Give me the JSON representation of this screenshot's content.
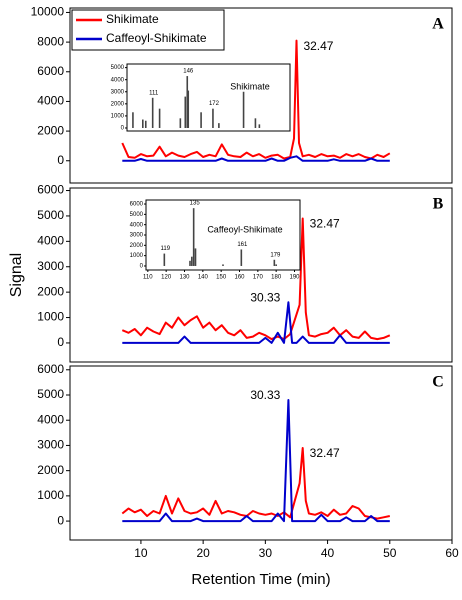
{
  "chart_data": [
    {
      "type": "line",
      "panel_label": "A",
      "legend": "upper left",
      "xlim": [
        -1.4,
        60
      ],
      "ylim": [
        -1500,
        10300
      ],
      "yticks": [
        0,
        2000,
        4000,
        6000,
        8000,
        10000
      ],
      "series": [
        {
          "name": "Shikimate",
          "color": "#ff0000",
          "peak_label": 32.47,
          "x": [
            7,
            8,
            9,
            10,
            11,
            12,
            13,
            14,
            15,
            16,
            17,
            18,
            19,
            20,
            21,
            22,
            23,
            24,
            25,
            26,
            27,
            28,
            29,
            30,
            31,
            32,
            33,
            34,
            34.6,
            35,
            35.4,
            36,
            37,
            38,
            39,
            40,
            41,
            42,
            43,
            44,
            45,
            46,
            47,
            48,
            49,
            50
          ],
          "values": [
            1200,
            250,
            200,
            450,
            300,
            350,
            950,
            300,
            550,
            350,
            250,
            450,
            600,
            250,
            400,
            300,
            1100,
            400,
            300,
            250,
            550,
            300,
            450,
            200,
            350,
            400,
            150,
            250,
            1500,
            8100,
            1200,
            300,
            400,
            250,
            450,
            300,
            350,
            200,
            450,
            300,
            450,
            250,
            150,
            400,
            250,
            500
          ]
        },
        {
          "name": "Caffeoyl-Shikimate",
          "color": "#0000cc",
          "x": [
            7,
            9,
            10,
            11,
            14,
            22,
            23,
            24,
            30,
            31,
            32,
            33,
            34,
            35,
            36,
            37,
            40,
            41,
            42,
            46,
            47,
            48,
            50
          ],
          "values": [
            0,
            0,
            120,
            0,
            0,
            0,
            150,
            0,
            0,
            150,
            0,
            0,
            200,
            300,
            0,
            0,
            0,
            100,
            0,
            0,
            150,
            0,
            0
          ]
        }
      ],
      "inset": {
        "type": "bar",
        "title": "Shikimate",
        "xlim": [
          85,
          250
        ],
        "ylim": [
          -250,
          5300
        ],
        "yticks": [
          0,
          1000,
          2000,
          3000,
          4000,
          5000
        ],
        "x": [
          91,
          101,
          104,
          111,
          118,
          139,
          144,
          146,
          147,
          160,
          172,
          178,
          203,
          215,
          219
        ],
        "values": [
          1300,
          700,
          600,
          2500,
          1600,
          800,
          2600,
          4300,
          3100,
          1300,
          1600,
          400,
          3000,
          800,
          300
        ],
        "labeled_peaks": [
          111,
          146,
          172
        ]
      }
    },
    {
      "type": "line",
      "panel_label": "B",
      "ylabel": "Signal",
      "xlim": [
        -1.4,
        60
      ],
      "ylim": [
        -750,
        6100
      ],
      "yticks": [
        0,
        1000,
        2000,
        3000,
        4000,
        5000,
        6000
      ],
      "series": [
        {
          "color": "#ff0000",
          "peak_label": 32.47,
          "x": [
            7,
            8,
            9,
            10,
            11,
            12,
            13,
            14,
            15,
            16,
            17,
            18,
            19,
            20,
            21,
            22,
            23,
            24,
            25,
            26,
            27,
            28,
            29,
            30,
            31,
            32,
            33,
            34,
            35.5,
            36,
            36.5,
            37,
            38,
            39,
            40,
            41,
            42,
            43,
            44,
            45,
            46,
            47,
            48,
            49,
            50
          ],
          "values": [
            500,
            400,
            550,
            300,
            600,
            450,
            350,
            800,
            600,
            1000,
            700,
            900,
            1050,
            600,
            800,
            500,
            700,
            400,
            300,
            500,
            200,
            250,
            400,
            300,
            150,
            250,
            150,
            350,
            1500,
            4900,
            1200,
            300,
            250,
            350,
            400,
            600,
            300,
            500,
            250,
            200,
            450,
            200,
            150,
            200,
            300
          ]
        },
        {
          "color": "#0000cc",
          "peak_label": 30.33,
          "x": [
            7,
            16,
            17,
            18,
            29,
            30,
            31,
            32,
            33,
            33.7,
            34.3,
            35,
            36,
            37,
            41,
            42,
            43,
            44,
            49,
            50
          ],
          "values": [
            0,
            0,
            250,
            0,
            0,
            200,
            0,
            400,
            0,
            1600,
            0,
            0,
            250,
            0,
            0,
            300,
            0,
            0,
            0,
            0
          ]
        }
      ],
      "inset": {
        "type": "bar",
        "title": "Caffeoyl-Shikimate",
        "xlim": [
          109,
          193
        ],
        "ylim": [
          -390,
          6390
        ],
        "yticks": [
          0,
          1000,
          2000,
          3000,
          4000,
          5000,
          6000
        ],
        "xticks": [
          110,
          120,
          130,
          140,
          150,
          160,
          170,
          180,
          190
        ],
        "x": [
          119,
          133,
          134,
          135,
          136,
          151,
          161,
          179,
          180
        ],
        "values": [
          1200,
          500,
          900,
          5600,
          1700,
          150,
          1600,
          600,
          150
        ],
        "labeled_peaks": [
          119,
          135,
          161,
          179
        ]
      }
    },
    {
      "type": "line",
      "panel_label": "C",
      "xlabel": "Retention Time (min)",
      "xlim": [
        -1.4,
        60
      ],
      "ylim": [
        -750,
        6150
      ],
      "yticks": [
        0,
        1000,
        2000,
        3000,
        4000,
        5000,
        6000
      ],
      "xticks": [
        10,
        20,
        30,
        40,
        50,
        60
      ],
      "series": [
        {
          "color": "#ff0000",
          "peak_label": 32.47,
          "x": [
            7,
            8,
            9,
            10,
            11,
            12,
            13,
            14,
            15,
            16,
            17,
            18,
            19,
            20,
            21,
            22,
            23,
            24,
            25,
            26,
            27,
            28,
            29,
            30,
            31,
            32,
            33,
            34,
            35.5,
            36,
            36.5,
            37,
            38,
            39,
            40,
            41,
            42,
            43,
            44,
            45,
            46,
            47,
            48,
            49,
            50
          ],
          "values": [
            300,
            500,
            350,
            450,
            200,
            400,
            300,
            1000,
            300,
            900,
            400,
            300,
            350,
            500,
            250,
            800,
            300,
            400,
            350,
            250,
            200,
            400,
            300,
            250,
            300,
            200,
            350,
            150,
            1500,
            2900,
            800,
            300,
            250,
            350,
            200,
            450,
            250,
            300,
            600,
            500,
            200,
            150,
            100,
            150,
            200
          ]
        },
        {
          "color": "#0000cc",
          "peak_label": 30.33,
          "x": [
            7,
            13,
            14,
            15,
            18,
            19,
            20,
            26,
            27,
            28,
            31,
            32,
            33,
            33.7,
            34.3,
            35,
            38,
            39,
            40,
            42,
            43,
            44,
            46,
            47,
            48,
            50
          ],
          "values": [
            0,
            0,
            300,
            0,
            0,
            100,
            0,
            0,
            200,
            0,
            0,
            300,
            0,
            4800,
            0,
            0,
            0,
            250,
            0,
            0,
            150,
            0,
            0,
            200,
            0,
            0
          ]
        }
      ]
    }
  ]
}
